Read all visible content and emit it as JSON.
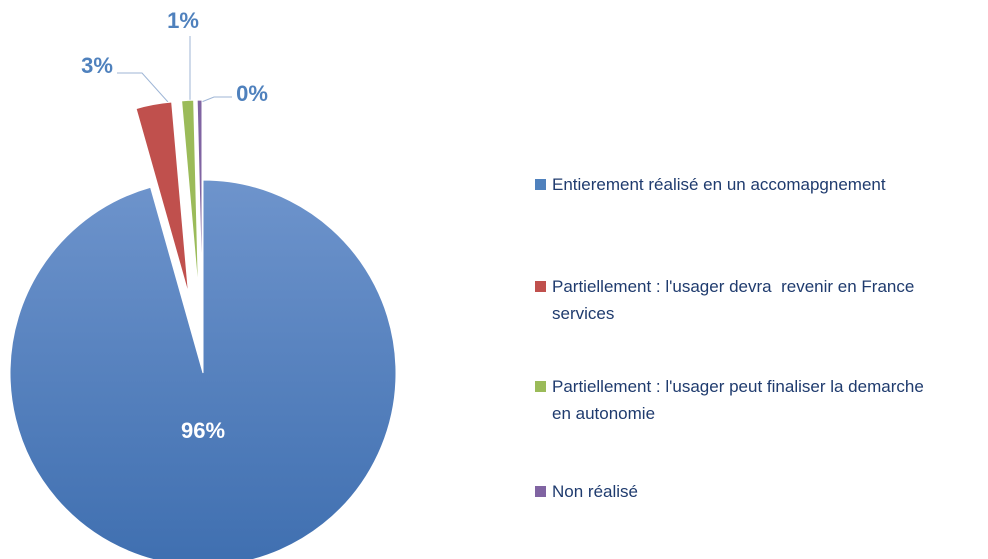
{
  "chart_data": {
    "type": "pie",
    "categories": [
      "Entierement réalisé en un accomapgnement",
      "Partiellement : l'usager devra  revenir en France services",
      "Partiellement : l'usager peut finaliser la demarche en autonomie",
      "Non réalisé"
    ],
    "values": [
      96,
      3,
      1,
      0.4
    ],
    "value_labels": [
      "96%",
      "3%",
      "1%",
      "0%"
    ],
    "colors": [
      "#4f81bd",
      "#c0504d",
      "#9bbb59",
      "#8064a2"
    ],
    "legend": "right"
  }
}
